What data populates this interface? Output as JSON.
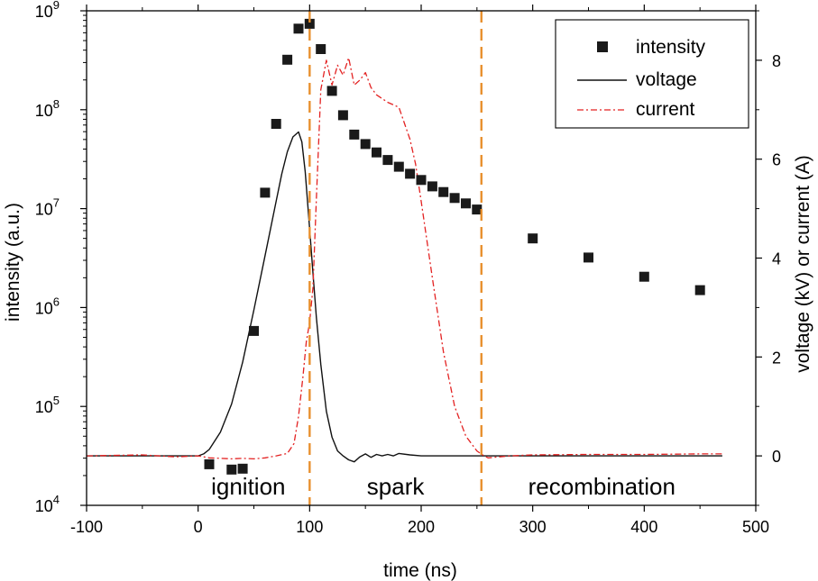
{
  "chart_data": {
    "type": "scatter+line",
    "xlabel": "time (ns)",
    "ylabel_left": "intensity (a.u.)",
    "ylabel_right": "voltage (kV) or current (A)",
    "xlim": [
      -100,
      500
    ],
    "x_ticks": [
      -100,
      0,
      100,
      200,
      300,
      400,
      500
    ],
    "ylim_left_log10": [
      4,
      9
    ],
    "y_ticks_left": [
      {
        "base": "10",
        "exp": "4"
      },
      {
        "base": "10",
        "exp": "5"
      },
      {
        "base": "10",
        "exp": "6"
      },
      {
        "base": "10",
        "exp": "7"
      },
      {
        "base": "10",
        "exp": "8"
      },
      {
        "base": "10",
        "exp": "9"
      }
    ],
    "ylim_right": [
      -1,
      9
    ],
    "y_ticks_right": [
      0,
      2,
      4,
      6,
      8
    ],
    "phase_boundaries": [
      100,
      254
    ],
    "phase_colors": {
      "boundary": "#e8902e"
    },
    "regions": [
      {
        "label": "ignition",
        "x": 45
      },
      {
        "label": "spark",
        "x": 177
      },
      {
        "label": "recombination",
        "x": 362
      }
    ],
    "legend": [
      {
        "label": "intensity",
        "style": "marker"
      },
      {
        "label": "voltage",
        "style": "solid"
      },
      {
        "label": "current",
        "style": "dashdot"
      }
    ],
    "series": [
      {
        "name": "intensity",
        "axis": "left",
        "color": "#1a1a1a",
        "x": [
          10,
          30,
          40,
          50,
          60,
          70,
          80,
          90,
          100,
          110,
          120,
          130,
          140,
          150,
          160,
          170,
          180,
          190,
          200,
          210,
          220,
          230,
          240,
          250,
          300,
          350,
          400,
          450
        ],
        "y": [
          26000,
          23000,
          23500,
          580000,
          14500000,
          72000000,
          320000000,
          660000000,
          740000000,
          410000000,
          155000000,
          88000000,
          56000000,
          45000000,
          37000000,
          31000000,
          26500000,
          22500000,
          19500000,
          16800000,
          14700000,
          12800000,
          11300000,
          9800000,
          5000000,
          3200000,
          2050000,
          1500000
        ]
      },
      {
        "name": "voltage",
        "axis": "right",
        "color": "#111111",
        "x": [
          -100,
          -50,
          0,
          5,
          10,
          20,
          30,
          40,
          50,
          60,
          70,
          75,
          80,
          85,
          90,
          93,
          96,
          100,
          103,
          106,
          110,
          115,
          120,
          125,
          130,
          135,
          140,
          145,
          150,
          155,
          160,
          165,
          170,
          175,
          180,
          190,
          200,
          250,
          300,
          350,
          400,
          470
        ],
        "y": [
          0,
          0,
          0,
          0.04,
          0.13,
          0.48,
          1.05,
          1.9,
          2.95,
          4.05,
          5.15,
          5.7,
          6.15,
          6.45,
          6.55,
          6.35,
          5.75,
          4.6,
          3.7,
          2.8,
          1.85,
          0.9,
          0.38,
          0.1,
          0.0,
          -0.08,
          -0.12,
          -0.02,
          0.04,
          -0.03,
          0.03,
          0.0,
          0.03,
          0.0,
          0.05,
          0.02,
          0.0,
          0.0,
          0.0,
          0.0,
          0.0,
          0.0
        ]
      },
      {
        "name": "current",
        "axis": "right",
        "color": "#e32222",
        "x": [
          -100,
          -50,
          -20,
          0,
          10,
          20,
          30,
          40,
          50,
          60,
          70,
          80,
          86,
          90,
          94,
          97,
          100,
          103,
          106,
          110,
          115,
          120,
          125,
          130,
          135,
          140,
          145,
          150,
          155,
          160,
          170,
          180,
          190,
          195,
          200,
          210,
          220,
          230,
          240,
          250,
          255,
          260,
          270,
          280,
          300,
          350,
          400,
          450,
          470
        ],
        "y": [
          0,
          0.02,
          -0.02,
          0.0,
          -0.04,
          -0.05,
          -0.06,
          -0.05,
          -0.06,
          -0.04,
          0.0,
          0.05,
          0.25,
          0.8,
          1.6,
          2.3,
          2.7,
          3.4,
          5.2,
          7.4,
          8.0,
          7.5,
          7.9,
          7.7,
          8.05,
          7.5,
          7.6,
          7.75,
          7.45,
          7.3,
          7.15,
          7.05,
          6.4,
          5.9,
          5.15,
          3.6,
          2.1,
          1.0,
          0.4,
          0.1,
          0.02,
          -0.04,
          -0.02,
          0.0,
          0.02,
          0.03,
          0.03,
          0.04,
          0.04
        ]
      }
    ]
  }
}
